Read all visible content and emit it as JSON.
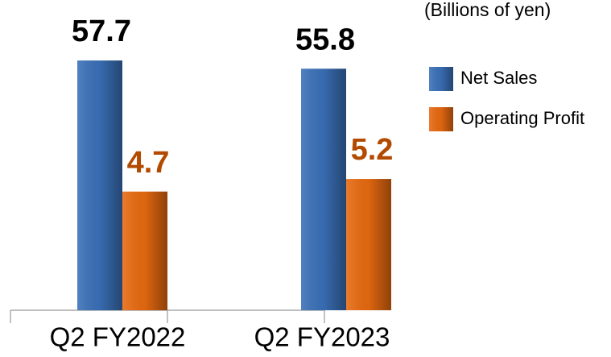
{
  "chart_data": {
    "type": "bar",
    "subtitle": "(Billions of yen)",
    "categories": [
      "Q2 FY2022",
      "Q2 FY2023"
    ],
    "series": [
      {
        "name": "Net Sales",
        "color": "#3a70b8",
        "values": [
          57.7,
          55.8
        ]
      },
      {
        "name": "Operating Profit",
        "color": "#e86a10",
        "values": [
          4.7,
          5.2
        ],
        "axis": "y2"
      }
    ],
    "ylim": [
      0,
      70
    ],
    "y2lim": [
      0,
      12
    ],
    "grid": false,
    "legend": "right"
  }
}
